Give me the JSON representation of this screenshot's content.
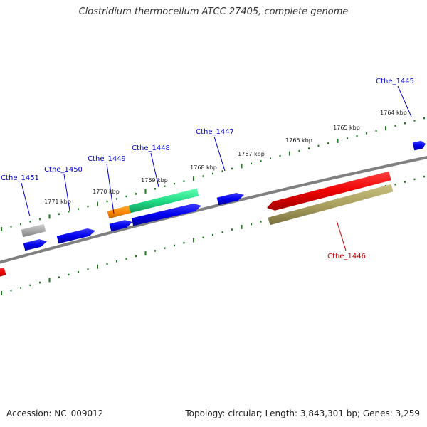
{
  "title": "Clostridium thermocellum ATCC 27405, complete genome",
  "footer": {
    "accession": "Accession: NC_009012",
    "summary": "Topology: circular; Length: 3,843,301 bp; Genes: 3,259"
  },
  "ruler_labels": [
    "1764 kbp",
    "1765 kbp",
    "1766 kbp",
    "1767 kbp",
    "1768 kbp",
    "1769 kbp",
    "1770 kbp",
    "1771 kbp"
  ],
  "gene_labels": [
    {
      "text": "Cthe_1445",
      "color": "#0000cc"
    },
    {
      "text": "Cthe_1446",
      "color": "#cc0000"
    },
    {
      "text": "Cthe_1447",
      "color": "#0000cc"
    },
    {
      "text": "Cthe_1448",
      "color": "#0000cc"
    },
    {
      "text": "Cthe_1449",
      "color": "#0000cc"
    },
    {
      "text": "Cthe_1450",
      "color": "#0000cc"
    },
    {
      "text": "Cthe_1451",
      "color": "#0000cc"
    }
  ],
  "colors": {
    "backbone": "#808080",
    "ruler": "#1a7a1a",
    "cds_forward": "#0000ee",
    "cds_reverse_red": "#ee0000",
    "cds_olive": "#aaa060",
    "cds_green": "#22dd88",
    "cds_orange": "#ff8800",
    "cds_gray": "#aaaaaa"
  }
}
